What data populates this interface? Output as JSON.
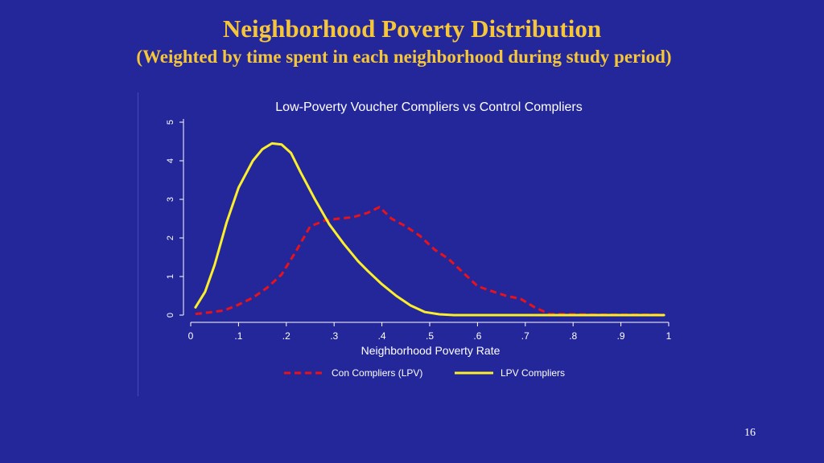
{
  "slide": {
    "title": "Neighborhood Poverty Distribution",
    "subtitle": "(Weighted by time spent in each neighborhood during study period)",
    "page_number": "16"
  },
  "colors": {
    "background": "#24279a",
    "title": "#f5c63a",
    "con_series": "#e8121b",
    "lpv_series": "#fbee2a",
    "text": "#ffffff"
  },
  "chart_data": {
    "type": "line",
    "title": "Low-Poverty Voucher Compliers vs Control Compliers",
    "xlabel": "Neighborhood Poverty Rate",
    "ylabel": "",
    "xlim": [
      0,
      1
    ],
    "ylim": [
      0,
      5
    ],
    "x_ticks": [
      0,
      0.1,
      0.2,
      0.3,
      0.4,
      0.5,
      0.6,
      0.7,
      0.8,
      0.9,
      1
    ],
    "x_tick_labels": [
      "0",
      ".1",
      ".2",
      ".3",
      ".4",
      ".5",
      ".6",
      ".7",
      ".8",
      ".9",
      "1"
    ],
    "y_ticks": [
      0,
      1,
      2,
      3,
      4,
      5
    ],
    "y_tick_labels": [
      "0",
      "1",
      "2",
      "3",
      "4",
      "5"
    ],
    "grid": false,
    "legend_position": "bottom",
    "series": [
      {
        "name": "Con Compliers (LPV)",
        "color": "#e8121b",
        "dash": "dashed",
        "points": [
          [
            0.01,
            0.03
          ],
          [
            0.04,
            0.07
          ],
          [
            0.07,
            0.12
          ],
          [
            0.1,
            0.27
          ],
          [
            0.13,
            0.45
          ],
          [
            0.16,
            0.71
          ],
          [
            0.19,
            1.05
          ],
          [
            0.22,
            1.65
          ],
          [
            0.25,
            2.3
          ],
          [
            0.28,
            2.45
          ],
          [
            0.31,
            2.5
          ],
          [
            0.34,
            2.54
          ],
          [
            0.37,
            2.65
          ],
          [
            0.395,
            2.8
          ],
          [
            0.42,
            2.5
          ],
          [
            0.45,
            2.3
          ],
          [
            0.48,
            2.05
          ],
          [
            0.51,
            1.7
          ],
          [
            0.54,
            1.45
          ],
          [
            0.57,
            1.1
          ],
          [
            0.6,
            0.75
          ],
          [
            0.63,
            0.62
          ],
          [
            0.66,
            0.5
          ],
          [
            0.69,
            0.42
          ],
          [
            0.72,
            0.2
          ],
          [
            0.75,
            0.03
          ],
          [
            0.8,
            0.02
          ],
          [
            0.85,
            0.01
          ],
          [
            0.9,
            0.01
          ],
          [
            0.95,
            0.01
          ],
          [
            0.99,
            0.01
          ]
        ]
      },
      {
        "name": "LPV Compliers",
        "color": "#fbee2a",
        "dash": "solid",
        "points": [
          [
            0.01,
            0.2
          ],
          [
            0.03,
            0.6
          ],
          [
            0.05,
            1.3
          ],
          [
            0.075,
            2.4
          ],
          [
            0.1,
            3.3
          ],
          [
            0.13,
            4.0
          ],
          [
            0.15,
            4.3
          ],
          [
            0.17,
            4.45
          ],
          [
            0.19,
            4.42
          ],
          [
            0.21,
            4.2
          ],
          [
            0.23,
            3.7
          ],
          [
            0.26,
            3.0
          ],
          [
            0.29,
            2.35
          ],
          [
            0.32,
            1.85
          ],
          [
            0.35,
            1.4
          ],
          [
            0.37,
            1.15
          ],
          [
            0.4,
            0.8
          ],
          [
            0.43,
            0.5
          ],
          [
            0.46,
            0.25
          ],
          [
            0.49,
            0.08
          ],
          [
            0.52,
            0.02
          ],
          [
            0.55,
            0.0
          ],
          [
            0.6,
            0.0
          ],
          [
            0.65,
            0.0
          ],
          [
            0.7,
            0.0
          ],
          [
            0.75,
            0.0
          ],
          [
            0.8,
            0.0
          ],
          [
            0.85,
            0.0
          ],
          [
            0.9,
            0.0
          ],
          [
            0.95,
            0.0
          ],
          [
            0.99,
            0.0
          ]
        ]
      }
    ]
  }
}
